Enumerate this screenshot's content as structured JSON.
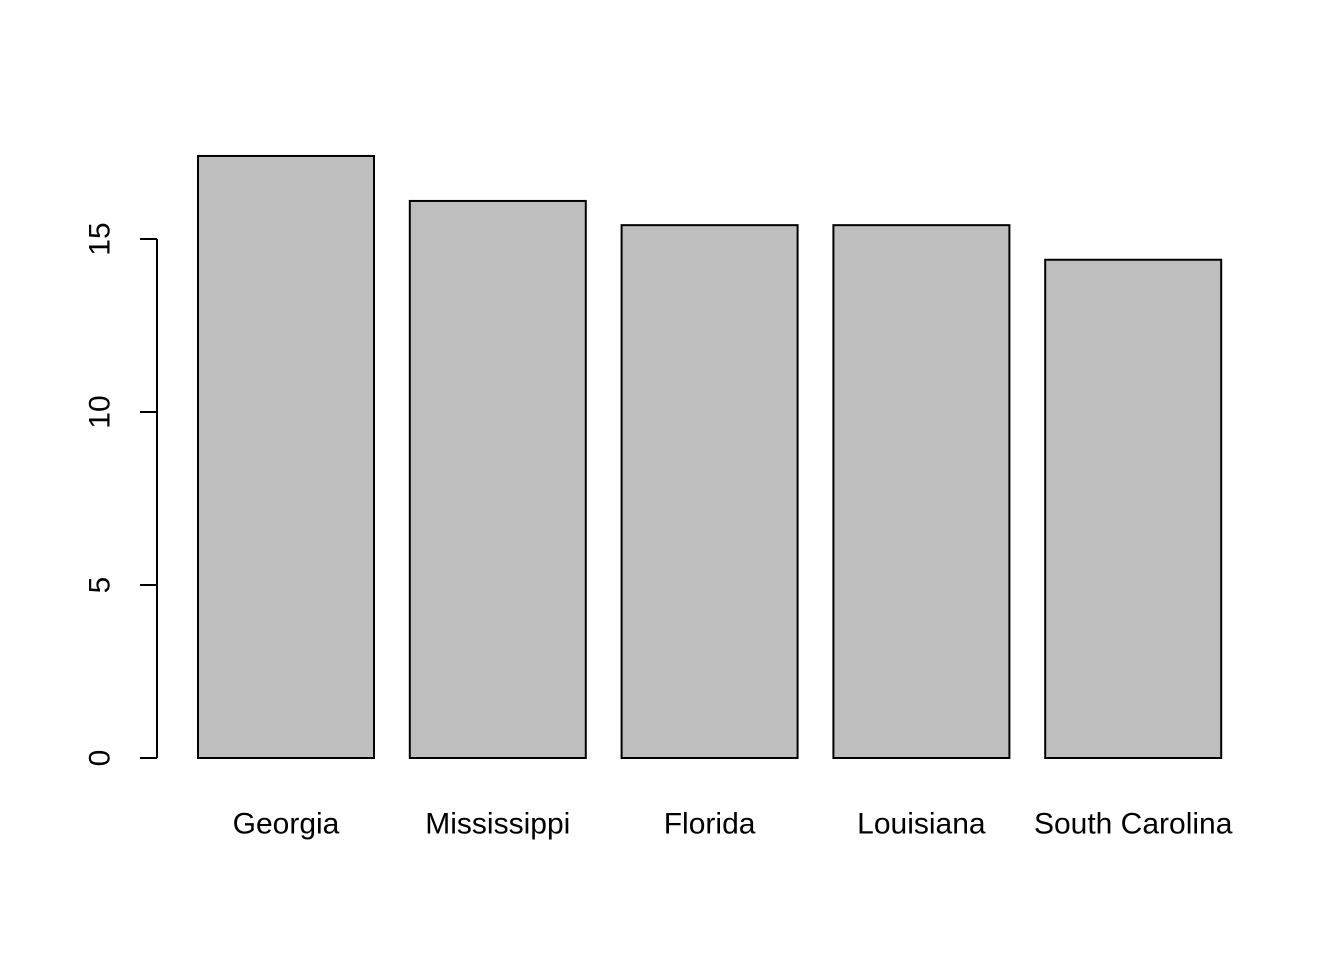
{
  "chart_data": {
    "type": "bar",
    "categories": [
      "Georgia",
      "Mississippi",
      "Florida",
      "Louisiana",
      "South Carolina"
    ],
    "values": [
      17.4,
      16.1,
      15.4,
      15.4,
      14.4
    ],
    "title": "",
    "xlabel": "",
    "ylabel": "",
    "ylim": [
      0,
      17.4
    ],
    "yticks": [
      0,
      5,
      10,
      15
    ],
    "grid": false,
    "colors": {
      "bar_fill": "#bebebe",
      "bar_stroke": "#000000",
      "background": "#ffffff"
    }
  }
}
